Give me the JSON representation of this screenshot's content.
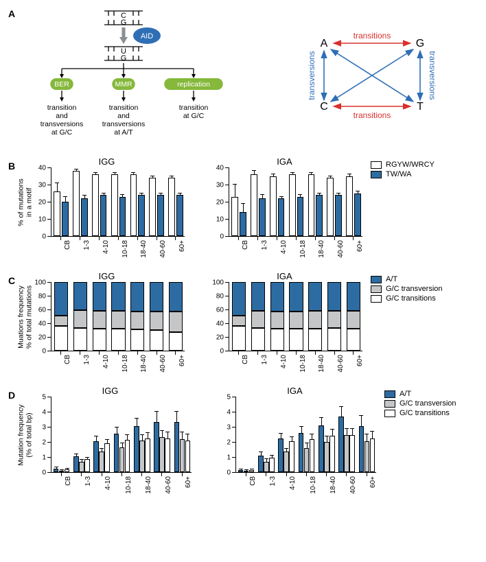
{
  "colors": {
    "blue": "#2d6ca2",
    "grey": "#c4c6c8",
    "white": "#ffffff",
    "black": "#000000",
    "green": "#85b83b",
    "red": "#d9302d",
    "arrowBlue": "#2f6eb5"
  },
  "panelA": {
    "label": "A",
    "pathway": {
      "topPair": "C:G",
      "aid": "AID",
      "midPair": "U:G",
      "branches": [
        {
          "tag": "BER",
          "text": [
            "transition",
            "and",
            "transversions",
            "at G/C"
          ]
        },
        {
          "tag": "MMR",
          "text": [
            "transition",
            "and",
            "transversions",
            "at A/T"
          ]
        },
        {
          "tag": "replication",
          "text": [
            "transition",
            "at G/C"
          ]
        }
      ]
    },
    "diagram": {
      "nodes": [
        "A",
        "G",
        "C",
        "T"
      ],
      "transitions_label": "transitions",
      "transversions_label": "transversions"
    }
  },
  "age_categories": [
    "CB",
    "1-3",
    "4-10",
    "10-18",
    "18-40",
    "40-60",
    "60+"
  ],
  "panelB": {
    "label": "B",
    "ylabel": "% of mutations\nin a motif",
    "ylim": [
      0,
      40
    ],
    "ytick_step": 10,
    "legend": [
      {
        "label": "RGYW/WRCY",
        "color": "#ffffff"
      },
      {
        "label": "TW/WA",
        "color": "#2d6ca2"
      }
    ],
    "charts": {
      "IGG": {
        "title": "IGG",
        "RGYW": {
          "v": [
            26,
            38,
            36,
            36,
            36,
            34,
            34
          ],
          "e": [
            5,
            1,
            1,
            1,
            1,
            1,
            1
          ]
        },
        "TW": {
          "v": [
            20,
            22,
            24,
            23,
            24,
            24,
            24
          ],
          "e": [
            3,
            1.5,
            1,
            1,
            1,
            1,
            1
          ]
        }
      },
      "IGA": {
        "title": "IGA",
        "RGYW": {
          "v": [
            23,
            36,
            35,
            36,
            36,
            34,
            35
          ],
          "e": [
            7,
            2,
            1,
            1,
            1,
            1,
            1
          ]
        },
        "TW": {
          "v": [
            14,
            22,
            22,
            23,
            24,
            24,
            25
          ],
          "e": [
            5,
            2,
            1,
            1,
            1,
            1,
            1
          ]
        }
      }
    }
  },
  "panelC": {
    "label": "C",
    "ylabel": "Muations frequency\n% of total mutations",
    "ylim": [
      0,
      100
    ],
    "ytick_step": 20,
    "legend": [
      {
        "label": "A/T",
        "color": "#2d6ca2"
      },
      {
        "label": "G/C transversion",
        "color": "#c4c6c8"
      },
      {
        "label": "G/C transitions",
        "color": "#ffffff"
      }
    ],
    "charts": {
      "IGG": {
        "title": "IGG",
        "GCtrans": {
          "v": [
            36,
            33,
            32,
            32,
            31,
            30,
            27
          ],
          "e": [
            3,
            1,
            1,
            1,
            1,
            1,
            1
          ]
        },
        "GCtransv": {
          "v": [
            15,
            26,
            26,
            26,
            26,
            27,
            30
          ],
          "e": [
            3,
            1,
            1,
            1,
            1,
            1,
            1
          ]
        },
        "AT": {
          "v": [
            49,
            41,
            42,
            42,
            43,
            43,
            43
          ],
          "e": [
            0,
            0,
            0,
            0,
            0,
            0,
            0
          ]
        }
      },
      "IGA": {
        "title": "IGA",
        "GCtrans": {
          "v": [
            36,
            33,
            32,
            32,
            32,
            33,
            32
          ],
          "e": [
            3,
            1,
            1,
            1,
            1,
            1,
            1
          ]
        },
        "GCtransv": {
          "v": [
            15,
            25,
            25,
            25,
            26,
            25,
            26
          ],
          "e": [
            3,
            1,
            1,
            1,
            1,
            1,
            1
          ]
        },
        "AT": {
          "v": [
            49,
            42,
            43,
            43,
            42,
            42,
            42
          ],
          "e": [
            0,
            0,
            0,
            0,
            0,
            0,
            0
          ]
        }
      }
    }
  },
  "panelD": {
    "label": "D",
    "ylabel": "Mutation frequency\n(% of total bp)",
    "ylim": [
      0,
      5
    ],
    "ytick_step": 1,
    "legend": [
      {
        "label": "A/T",
        "color": "#2d6ca2"
      },
      {
        "label": "G/C transversion",
        "color": "#c4c6c8"
      },
      {
        "label": "G/C transitions",
        "color": "#ffffff"
      }
    ],
    "charts": {
      "IGG": {
        "title": "IGG",
        "AT": {
          "v": [
            0.25,
            1.05,
            2.05,
            2.55,
            3.05,
            3.3,
            3.3
          ],
          "e": [
            0.05,
            0.15,
            0.3,
            0.4,
            0.5,
            0.7,
            0.7
          ]
        },
        "GCtransv": {
          "v": [
            0.1,
            0.7,
            1.35,
            1.65,
            2.1,
            2.3,
            2.2
          ],
          "e": [
            0.05,
            0.1,
            0.2,
            0.25,
            0.35,
            0.45,
            0.45
          ]
        },
        "GCtrans": {
          "v": [
            0.2,
            0.85,
            1.9,
            2.15,
            2.25,
            2.25,
            2.1
          ],
          "e": [
            0.05,
            0.1,
            0.25,
            0.3,
            0.35,
            0.4,
            0.4
          ]
        }
      },
      "IGA": {
        "title": "IGA",
        "AT": {
          "v": [
            0.15,
            1.1,
            2.25,
            2.6,
            3.1,
            3.7,
            3.05
          ],
          "e": [
            0.05,
            0.2,
            0.3,
            0.4,
            0.5,
            0.6,
            0.7
          ]
        },
        "GCtransv": {
          "v": [
            0.08,
            0.7,
            1.35,
            1.6,
            2.0,
            2.45,
            2.05
          ],
          "e": [
            0.04,
            0.15,
            0.2,
            0.3,
            0.35,
            0.4,
            0.45
          ]
        },
        "GCtrans": {
          "v": [
            0.12,
            0.95,
            2.05,
            2.2,
            2.4,
            2.45,
            2.25
          ],
          "e": [
            0.04,
            0.15,
            0.25,
            0.3,
            0.4,
            0.4,
            0.45
          ]
        }
      }
    }
  }
}
